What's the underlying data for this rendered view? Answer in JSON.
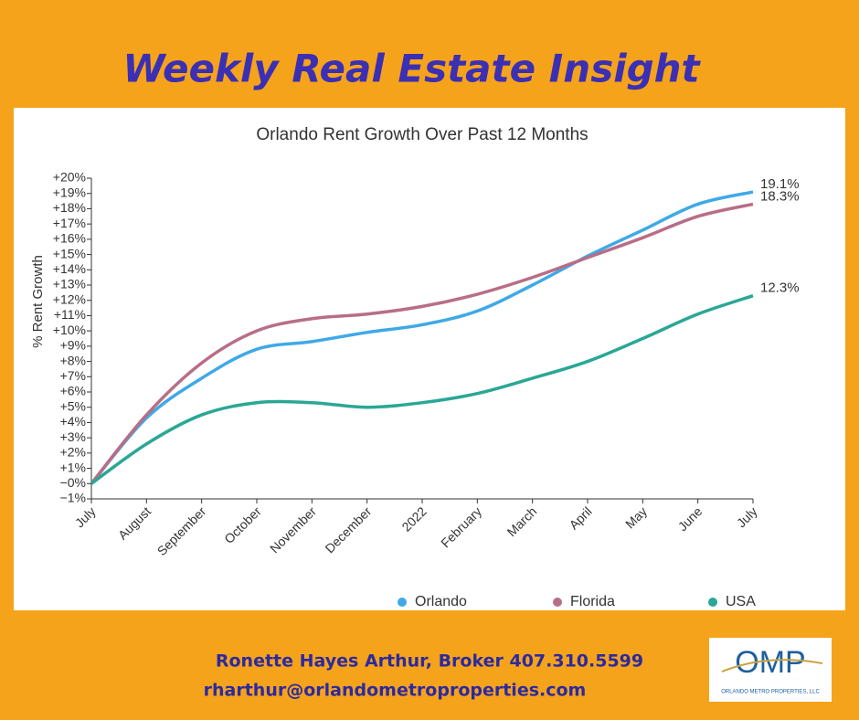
{
  "header": {
    "title": "Weekly Real Estate Insight"
  },
  "chart_data": {
    "type": "line",
    "title": "Orlando Rent Growth Over Past 12 Months",
    "y_label": "% Rent Growth",
    "categories": [
      "July",
      "August",
      "September",
      "October",
      "November",
      "December",
      "2022",
      "February",
      "March",
      "April",
      "May",
      "June",
      "July"
    ],
    "series": [
      {
        "name": "Orlando",
        "color": "#3fa9e6",
        "values": [
          0,
          4.3,
          6.9,
          8.8,
          9.3,
          9.9,
          10.4,
          11.3,
          13.0,
          14.9,
          16.6,
          18.3,
          19.1
        ],
        "value_labels": [
          null,
          null,
          null,
          null,
          null,
          null,
          null,
          null,
          null,
          null,
          null,
          null,
          "19.1%"
        ]
      },
      {
        "name": "Florida",
        "color": "#b86e86",
        "values": [
          0,
          4.5,
          7.9,
          10.0,
          10.8,
          11.1,
          11.6,
          12.4,
          13.5,
          14.8,
          16.1,
          17.5,
          18.3
        ],
        "value_labels": [
          null,
          null,
          null,
          null,
          null,
          null,
          null,
          null,
          null,
          null,
          null,
          null,
          "18.3%"
        ]
      },
      {
        "name": "USA",
        "color": "#2aa795",
        "values": [
          0,
          2.6,
          4.5,
          5.3,
          5.3,
          5.0,
          5.3,
          5.9,
          6.9,
          8.0,
          9.5,
          11.1,
          12.3
        ],
        "value_labels": [
          null,
          null,
          null,
          null,
          null,
          null,
          null,
          null,
          null,
          null,
          null,
          null,
          "12.3%"
        ]
      }
    ],
    "ylim": [
      -1,
      20
    ],
    "yticks": [
      {
        "value": -1,
        "label": "−1%"
      },
      {
        "value": 0,
        "label": "−0%"
      },
      {
        "value": 1,
        "label": "+1%"
      },
      {
        "value": 2,
        "label": "+2%"
      },
      {
        "value": 3,
        "label": "+3%"
      },
      {
        "value": 4,
        "label": "+4%"
      },
      {
        "value": 5,
        "label": "+5%"
      },
      {
        "value": 6,
        "label": "+6%"
      },
      {
        "value": 7,
        "label": "+7%"
      },
      {
        "value": 8,
        "label": "+8%"
      },
      {
        "value": 9,
        "label": "+9%"
      },
      {
        "value": 10,
        "label": "+10%"
      },
      {
        "value": 11,
        "label": "+11%"
      },
      {
        "value": 12,
        "label": "+12%"
      },
      {
        "value": 13,
        "label": "+13%"
      },
      {
        "value": 14,
        "label": "+14%"
      },
      {
        "value": 15,
        "label": "+15%"
      },
      {
        "value": 16,
        "label": "+16%"
      },
      {
        "value": 17,
        "label": "+17%"
      },
      {
        "value": 18,
        "label": "+18%"
      },
      {
        "value": 19,
        "label": "+19%"
      },
      {
        "value": 20,
        "label": "+20%"
      }
    ],
    "grid": false,
    "legend": "bottom"
  },
  "footer": {
    "lines": [
      "Ronette Hayes Arthur, Broker 407.310.5599",
      "rharthur@orlandometroproperties.com"
    ]
  },
  "logo": {
    "mark": "OMP",
    "name": "ORLANDO METRO PROPERTIES, LLC"
  }
}
